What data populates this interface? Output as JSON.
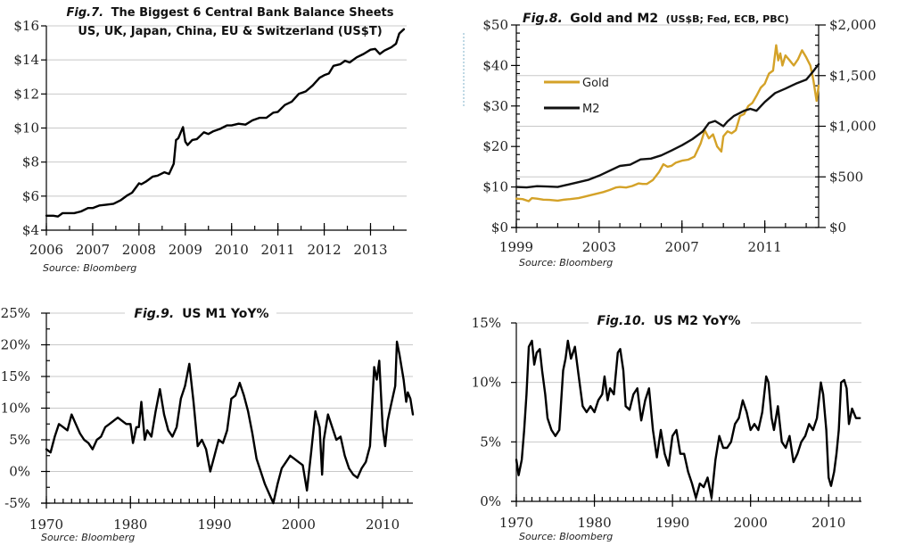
{
  "chart_data": [
    {
      "id": "fig7",
      "type": "line",
      "title_prefix": "Fig.7.",
      "title": "The Biggest 6 Central Bank Balance Sheets",
      "subtitle": "US, UK, Japan, China, EU & Switzerland (US$T)",
      "source": "Source: Bloomberg",
      "xlabel": "",
      "ylabel": "",
      "xlim": [
        2006,
        2013.78
      ],
      "ylim": [
        4,
        16
      ],
      "yticks": [
        4,
        6,
        8,
        10,
        12,
        14,
        16
      ],
      "ytick_labels": [
        "$4",
        "$6",
        "$8",
        "$10",
        "$12",
        "$14",
        "$16"
      ],
      "xticks": [
        2006,
        2007,
        2008,
        2009,
        2010,
        2011,
        2012,
        2013
      ],
      "xtick_labels": [
        "2006",
        "2007",
        "2008",
        "2009",
        "2010",
        "2011",
        "2012",
        "2013"
      ],
      "grid": true,
      "series": [
        {
          "name": "Central bank balance sheets",
          "color": "#000000",
          "x": [
            2006.0,
            2006.15,
            2006.25,
            2006.35,
            2006.45,
            2006.6,
            2006.75,
            2006.9,
            2007.0,
            2007.15,
            2007.3,
            2007.45,
            2007.6,
            2007.75,
            2007.85,
            2008.0,
            2008.05,
            2008.15,
            2008.3,
            2008.4,
            2008.55,
            2008.65,
            2008.75,
            2008.8,
            2008.85,
            2008.95,
            2009.0,
            2009.05,
            2009.15,
            2009.25,
            2009.4,
            2009.5,
            2009.6,
            2009.75,
            2009.9,
            2010.0,
            2010.15,
            2010.3,
            2010.45,
            2010.6,
            2010.75,
            2010.9,
            2011.0,
            2011.15,
            2011.3,
            2011.45,
            2011.6,
            2011.75,
            2011.9,
            2012.0,
            2012.1,
            2012.2,
            2012.35,
            2012.45,
            2012.55,
            2012.7,
            2012.85,
            2013.0,
            2013.1,
            2013.2,
            2013.3,
            2013.45,
            2013.55,
            2013.62,
            2013.72
          ],
          "values": [
            4.85,
            4.85,
            4.8,
            5.0,
            5.0,
            5.0,
            5.1,
            5.3,
            5.3,
            5.45,
            5.5,
            5.55,
            5.75,
            6.05,
            6.2,
            6.75,
            6.7,
            6.85,
            7.15,
            7.2,
            7.4,
            7.3,
            7.9,
            9.3,
            9.4,
            10.05,
            9.2,
            9.0,
            9.3,
            9.35,
            9.75,
            9.65,
            9.8,
            9.95,
            10.15,
            10.15,
            10.25,
            10.2,
            10.45,
            10.6,
            10.6,
            10.9,
            10.95,
            11.35,
            11.55,
            12.0,
            12.15,
            12.5,
            12.95,
            13.1,
            13.2,
            13.65,
            13.75,
            13.95,
            13.85,
            14.15,
            14.35,
            14.6,
            14.65,
            14.35,
            14.55,
            14.75,
            14.95,
            15.55,
            15.8
          ]
        }
      ]
    },
    {
      "id": "fig8",
      "type": "line",
      "title_prefix": "Fig.8.",
      "title": "Gold and M2",
      "title_suffix": "(US$B; Fed, ECB, PBC)",
      "source": "Source: Bloomberg",
      "xlabel": "",
      "ylabel": "",
      "xlim": [
        1999,
        2013.6
      ],
      "ylim_left": [
        0,
        50
      ],
      "ylim_right": [
        0,
        2000
      ],
      "yticks_left": [
        0,
        10,
        20,
        30,
        40,
        50
      ],
      "ytick_labels_left": [
        "$0",
        "$10",
        "$20",
        "$30",
        "$40",
        "$50"
      ],
      "yticks_right": [
        0,
        500,
        1000,
        1500,
        2000
      ],
      "ytick_labels_right": [
        "$0",
        "$500",
        "$1,000",
        "$1,500",
        "$2,000"
      ],
      "xticks": [
        1999,
        2003,
        2007,
        2011
      ],
      "xtick_labels": [
        "1999",
        "2003",
        "2007",
        "2011"
      ],
      "grid": true,
      "legend": {
        "position": "upper-left"
      },
      "series": [
        {
          "name": "Gold",
          "axis": "right",
          "color": "#d4a228",
          "x": [
            1999.0,
            1999.3,
            1999.6,
            1999.75,
            2000.0,
            2000.3,
            2000.6,
            2001.0,
            2001.3,
            2001.6,
            2002.0,
            2002.3,
            2002.6,
            2003.0,
            2003.2,
            2003.5,
            2003.8,
            2004.0,
            2004.3,
            2004.6,
            2004.9,
            2005.1,
            2005.3,
            2005.6,
            2005.9,
            2006.1,
            2006.3,
            2006.5,
            2006.7,
            2007.0,
            2007.3,
            2007.6,
            2007.9,
            2008.1,
            2008.3,
            2008.5,
            2008.7,
            2008.9,
            2009.0,
            2009.2,
            2009.4,
            2009.6,
            2009.8,
            2010.0,
            2010.2,
            2010.4,
            2010.6,
            2010.8,
            2011.0,
            2011.2,
            2011.4,
            2011.55,
            2011.65,
            2011.75,
            2011.85,
            2012.0,
            2012.2,
            2012.4,
            2012.6,
            2012.8,
            2013.0,
            2013.2,
            2013.35,
            2013.5,
            2013.6
          ],
          "values": [
            285,
            280,
            260,
            290,
            285,
            275,
            272,
            265,
            275,
            280,
            290,
            305,
            320,
            340,
            350,
            370,
            395,
            400,
            395,
            410,
            435,
            430,
            430,
            470,
            550,
            625,
            600,
            610,
            640,
            660,
            670,
            700,
            830,
            960,
            880,
            920,
            800,
            750,
            900,
            950,
            930,
            960,
            1100,
            1120,
            1200,
            1230,
            1300,
            1380,
            1420,
            1520,
            1550,
            1800,
            1650,
            1720,
            1600,
            1700,
            1650,
            1600,
            1660,
            1750,
            1680,
            1600,
            1450,
            1250,
            1400
          ]
        },
        {
          "name": "M2",
          "axis": "left",
          "color": "#111111",
          "x": [
            1999.0,
            1999.5,
            2000.0,
            2000.5,
            2001.0,
            2001.5,
            2002.0,
            2002.5,
            2003.0,
            2003.5,
            2004.0,
            2004.5,
            2005.0,
            2005.5,
            2006.0,
            2006.5,
            2007.0,
            2007.5,
            2008.0,
            2008.3,
            2008.6,
            2009.0,
            2009.2,
            2009.5,
            2010.0,
            2010.3,
            2010.6,
            2011.0,
            2011.5,
            2012.0,
            2012.5,
            2013.0,
            2013.3,
            2013.6
          ],
          "values": [
            10.0,
            9.9,
            10.2,
            10.1,
            10.0,
            10.6,
            11.2,
            11.8,
            12.8,
            14.0,
            15.2,
            15.5,
            16.8,
            17.0,
            17.8,
            19.0,
            20.3,
            21.8,
            23.7,
            25.8,
            26.3,
            25.0,
            26.2,
            27.5,
            28.8,
            29.3,
            28.8,
            31.0,
            33.2,
            34.3,
            35.5,
            36.5,
            38.3,
            40.3
          ]
        }
      ]
    },
    {
      "id": "fig9",
      "type": "line",
      "title_prefix": "Fig.9.",
      "title": "US M1 YoY%",
      "source": "Source: Bloomberg",
      "xlabel": "",
      "ylabel": "",
      "xlim": [
        1970,
        2013.6
      ],
      "ylim": [
        -5,
        25
      ],
      "yticks": [
        -5,
        0,
        5,
        10,
        15,
        20,
        25
      ],
      "ytick_labels": [
        "-5%",
        "0%",
        "5%",
        "10%",
        "15%",
        "20%",
        "25%"
      ],
      "xticks": [
        1970,
        1980,
        1990,
        2000,
        2010
      ],
      "xtick_labels": [
        "1970",
        "1980",
        "1990",
        "2000",
        "2010"
      ],
      "grid": true,
      "series": [
        {
          "name": "US M1 YoY%",
          "color": "#000000",
          "x": [
            1970.0,
            1970.5,
            1971.0,
            1971.5,
            1972.0,
            1972.5,
            1973.0,
            1973.5,
            1974.0,
            1974.5,
            1975.0,
            1975.5,
            1976.0,
            1976.5,
            1977.0,
            1977.5,
            1978.0,
            1978.5,
            1979.0,
            1979.5,
            1980.0,
            1980.3,
            1980.7,
            1981.0,
            1981.3,
            1981.7,
            1982.0,
            1982.5,
            1983.0,
            1983.5,
            1984.0,
            1984.5,
            1985.0,
            1985.5,
            1986.0,
            1986.5,
            1987.0,
            1987.5,
            1988.0,
            1988.5,
            1989.0,
            1989.5,
            1990.0,
            1990.5,
            1991.0,
            1991.5,
            1992.0,
            1992.5,
            1993.0,
            1993.5,
            1994.0,
            1994.5,
            1995.0,
            1995.5,
            1996.0,
            1996.5,
            1997.0,
            1997.5,
            1998.0,
            1998.5,
            1999.0,
            1999.5,
            2000.0,
            2000.5,
            2001.0,
            2001.5,
            2002.0,
            2002.5,
            2002.8,
            2003.0,
            2003.5,
            2004.0,
            2004.5,
            2005.0,
            2005.5,
            2006.0,
            2006.5,
            2007.0,
            2007.5,
            2008.0,
            2008.5,
            2009.0,
            2009.3,
            2009.6,
            2010.0,
            2010.3,
            2010.6,
            2011.0,
            2011.5,
            2011.7,
            2012.0,
            2012.5,
            2012.8,
            2013.0,
            2013.3,
            2013.6
          ],
          "values": [
            3.5,
            3.0,
            5.5,
            7.5,
            7.0,
            6.5,
            9.0,
            7.5,
            6.0,
            5.0,
            4.5,
            3.5,
            5.0,
            5.5,
            7.0,
            7.5,
            8.0,
            8.5,
            8.0,
            7.5,
            7.5,
            4.5,
            7.0,
            7.0,
            11.0,
            5.0,
            6.5,
            5.5,
            9.5,
            13.0,
            9.0,
            6.5,
            5.5,
            7.0,
            11.5,
            13.5,
            17.0,
            11.0,
            4.0,
            5.0,
            3.5,
            0.0,
            2.5,
            5.0,
            4.5,
            6.5,
            11.5,
            12.0,
            14.0,
            12.0,
            9.5,
            6.0,
            2.0,
            0.0,
            -2.0,
            -3.5,
            -5.0,
            -2.0,
            0.5,
            1.5,
            2.5,
            2.0,
            1.5,
            1.0,
            -3.0,
            3.0,
            9.5,
            7.0,
            -0.5,
            5.0,
            9.0,
            7.0,
            5.0,
            5.5,
            2.5,
            0.5,
            -0.5,
            -1.0,
            0.5,
            1.5,
            4.0,
            16.5,
            14.5,
            17.5,
            7.0,
            4.0,
            8.0,
            10.5,
            13.5,
            20.5,
            18.5,
            14.5,
            11.0,
            12.5,
            11.5,
            9.0
          ]
        }
      ]
    },
    {
      "id": "fig10",
      "type": "line",
      "title_prefix": "Fig.10.",
      "title": "US M2 YoY%",
      "source": "Source: Bloomberg",
      "xlabel": "",
      "ylabel": "",
      "xlim": [
        1970,
        2014.2
      ],
      "ylim": [
        0,
        15
      ],
      "yticks": [
        0,
        5,
        10,
        15
      ],
      "ytick_labels": [
        "0%",
        "5%",
        "10%",
        "15%"
      ],
      "xticks": [
        1970,
        1980,
        1990,
        2000,
        2010
      ],
      "xtick_labels": [
        "1970",
        "1980",
        "1990",
        "2000",
        "2010"
      ],
      "grid": true,
      "series": [
        {
          "name": "US M2 YoY%",
          "color": "#000000",
          "x": [
            1970.0,
            1970.3,
            1970.7,
            1971.0,
            1971.3,
            1971.6,
            1972.0,
            1972.3,
            1972.6,
            1973.0,
            1973.3,
            1973.7,
            1974.0,
            1974.5,
            1975.0,
            1975.5,
            1976.0,
            1976.3,
            1976.6,
            1977.0,
            1977.5,
            1978.0,
            1978.5,
            1979.0,
            1979.5,
            1980.0,
            1980.5,
            1981.0,
            1981.3,
            1981.7,
            1982.0,
            1982.5,
            1983.0,
            1983.3,
            1983.7,
            1984.0,
            1984.5,
            1985.0,
            1985.5,
            1986.0,
            1986.5,
            1987.0,
            1987.5,
            1988.0,
            1988.5,
            1989.0,
            1989.5,
            1990.0,
            1990.5,
            1991.0,
            1991.5,
            1992.0,
            1992.5,
            1993.0,
            1993.5,
            1994.0,
            1994.5,
            1995.0,
            1995.5,
            1996.0,
            1996.5,
            1997.0,
            1997.5,
            1998.0,
            1998.5,
            1999.0,
            1999.5,
            2000.0,
            2000.5,
            2001.0,
            2001.5,
            2002.0,
            2002.3,
            2002.7,
            2003.0,
            2003.5,
            2004.0,
            2004.5,
            2005.0,
            2005.5,
            2006.0,
            2006.5,
            2007.0,
            2007.5,
            2008.0,
            2008.5,
            2009.0,
            2009.3,
            2009.7,
            2010.0,
            2010.3,
            2010.7,
            2011.0,
            2011.3,
            2011.6,
            2012.0,
            2012.3,
            2012.6,
            2013.0,
            2013.5,
            2014.0
          ],
          "values": [
            3.5,
            2.2,
            3.5,
            6.0,
            9.0,
            13.0,
            13.5,
            11.5,
            12.5,
            12.8,
            11.0,
            9.0,
            7.0,
            6.0,
            5.5,
            6.0,
            11.0,
            12.0,
            13.5,
            12.0,
            13.0,
            10.5,
            8.0,
            7.5,
            8.0,
            7.5,
            8.5,
            9.0,
            10.5,
            8.5,
            9.5,
            9.0,
            12.5,
            12.8,
            11.0,
            8.0,
            7.7,
            9.0,
            9.5,
            6.8,
            8.5,
            9.5,
            6.0,
            3.7,
            6.0,
            4.0,
            3.0,
            5.5,
            6.0,
            4.0,
            4.0,
            2.5,
            1.5,
            0.3,
            1.5,
            1.2,
            2.0,
            0.3,
            3.5,
            5.5,
            4.5,
            4.5,
            5.0,
            6.5,
            7.0,
            8.5,
            7.5,
            6.0,
            6.5,
            6.0,
            7.5,
            10.5,
            10.0,
            7.0,
            6.0,
            8.0,
            5.0,
            4.5,
            5.5,
            3.3,
            4.0,
            5.0,
            5.5,
            6.5,
            6.0,
            7.0,
            10.0,
            9.0,
            6.0,
            2.0,
            1.3,
            2.5,
            4.0,
            6.0,
            10.0,
            10.2,
            9.5,
            6.5,
            7.8,
            7.0,
            7.0
          ]
        }
      ]
    }
  ]
}
